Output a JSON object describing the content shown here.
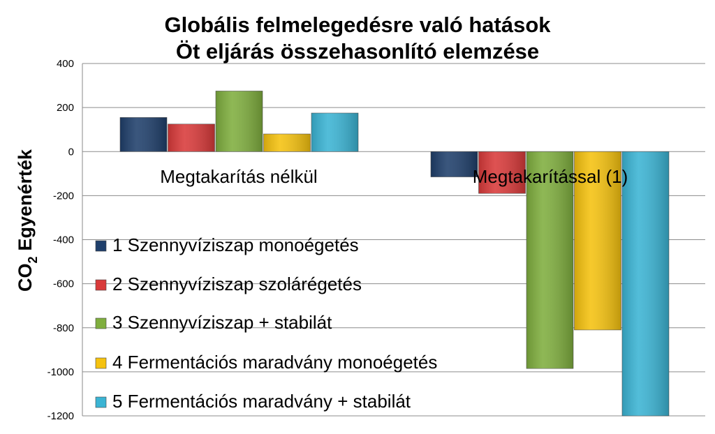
{
  "chart_data": {
    "type": "bar",
    "title_lines": [
      "Globális felmelegedésre való hatások",
      "Öt eljárás összehasonlító elemzése"
    ],
    "ylabel": "Egyenérték",
    "ylabel_prefix": "CO",
    "ylabel_subscript": "2",
    "ylim": [
      -1200,
      400
    ],
    "yticks": [
      400,
      200,
      0,
      -200,
      -400,
      -600,
      -800,
      -1000,
      -1200
    ],
    "grid": true,
    "legend_position": "left-inside",
    "categories": [
      "Megtakarítás nélkül",
      "Megtakarítással (1)"
    ],
    "series": [
      {
        "name": "1 Szennyvíziszap monoégetés",
        "color": "#1F3F6B",
        "values": [
          155,
          -115
        ]
      },
      {
        "name": "2 Szennyvíziszap szolárégetés",
        "color": "#D93A3A",
        "values": [
          125,
          -190
        ]
      },
      {
        "name": "3 Szennyvíziszap + stabilát",
        "color": "#7FAE3E",
        "values": [
          275,
          -985
        ]
      },
      {
        "name": "4 Fermentációs maradvány monoégetés",
        "color": "#F5C20F",
        "values": [
          80,
          -810
        ]
      },
      {
        "name": "5 Fermentációs maradvány + stabilát",
        "color": "#3BB4D4",
        "values": [
          175,
          -1200
        ]
      }
    ]
  }
}
